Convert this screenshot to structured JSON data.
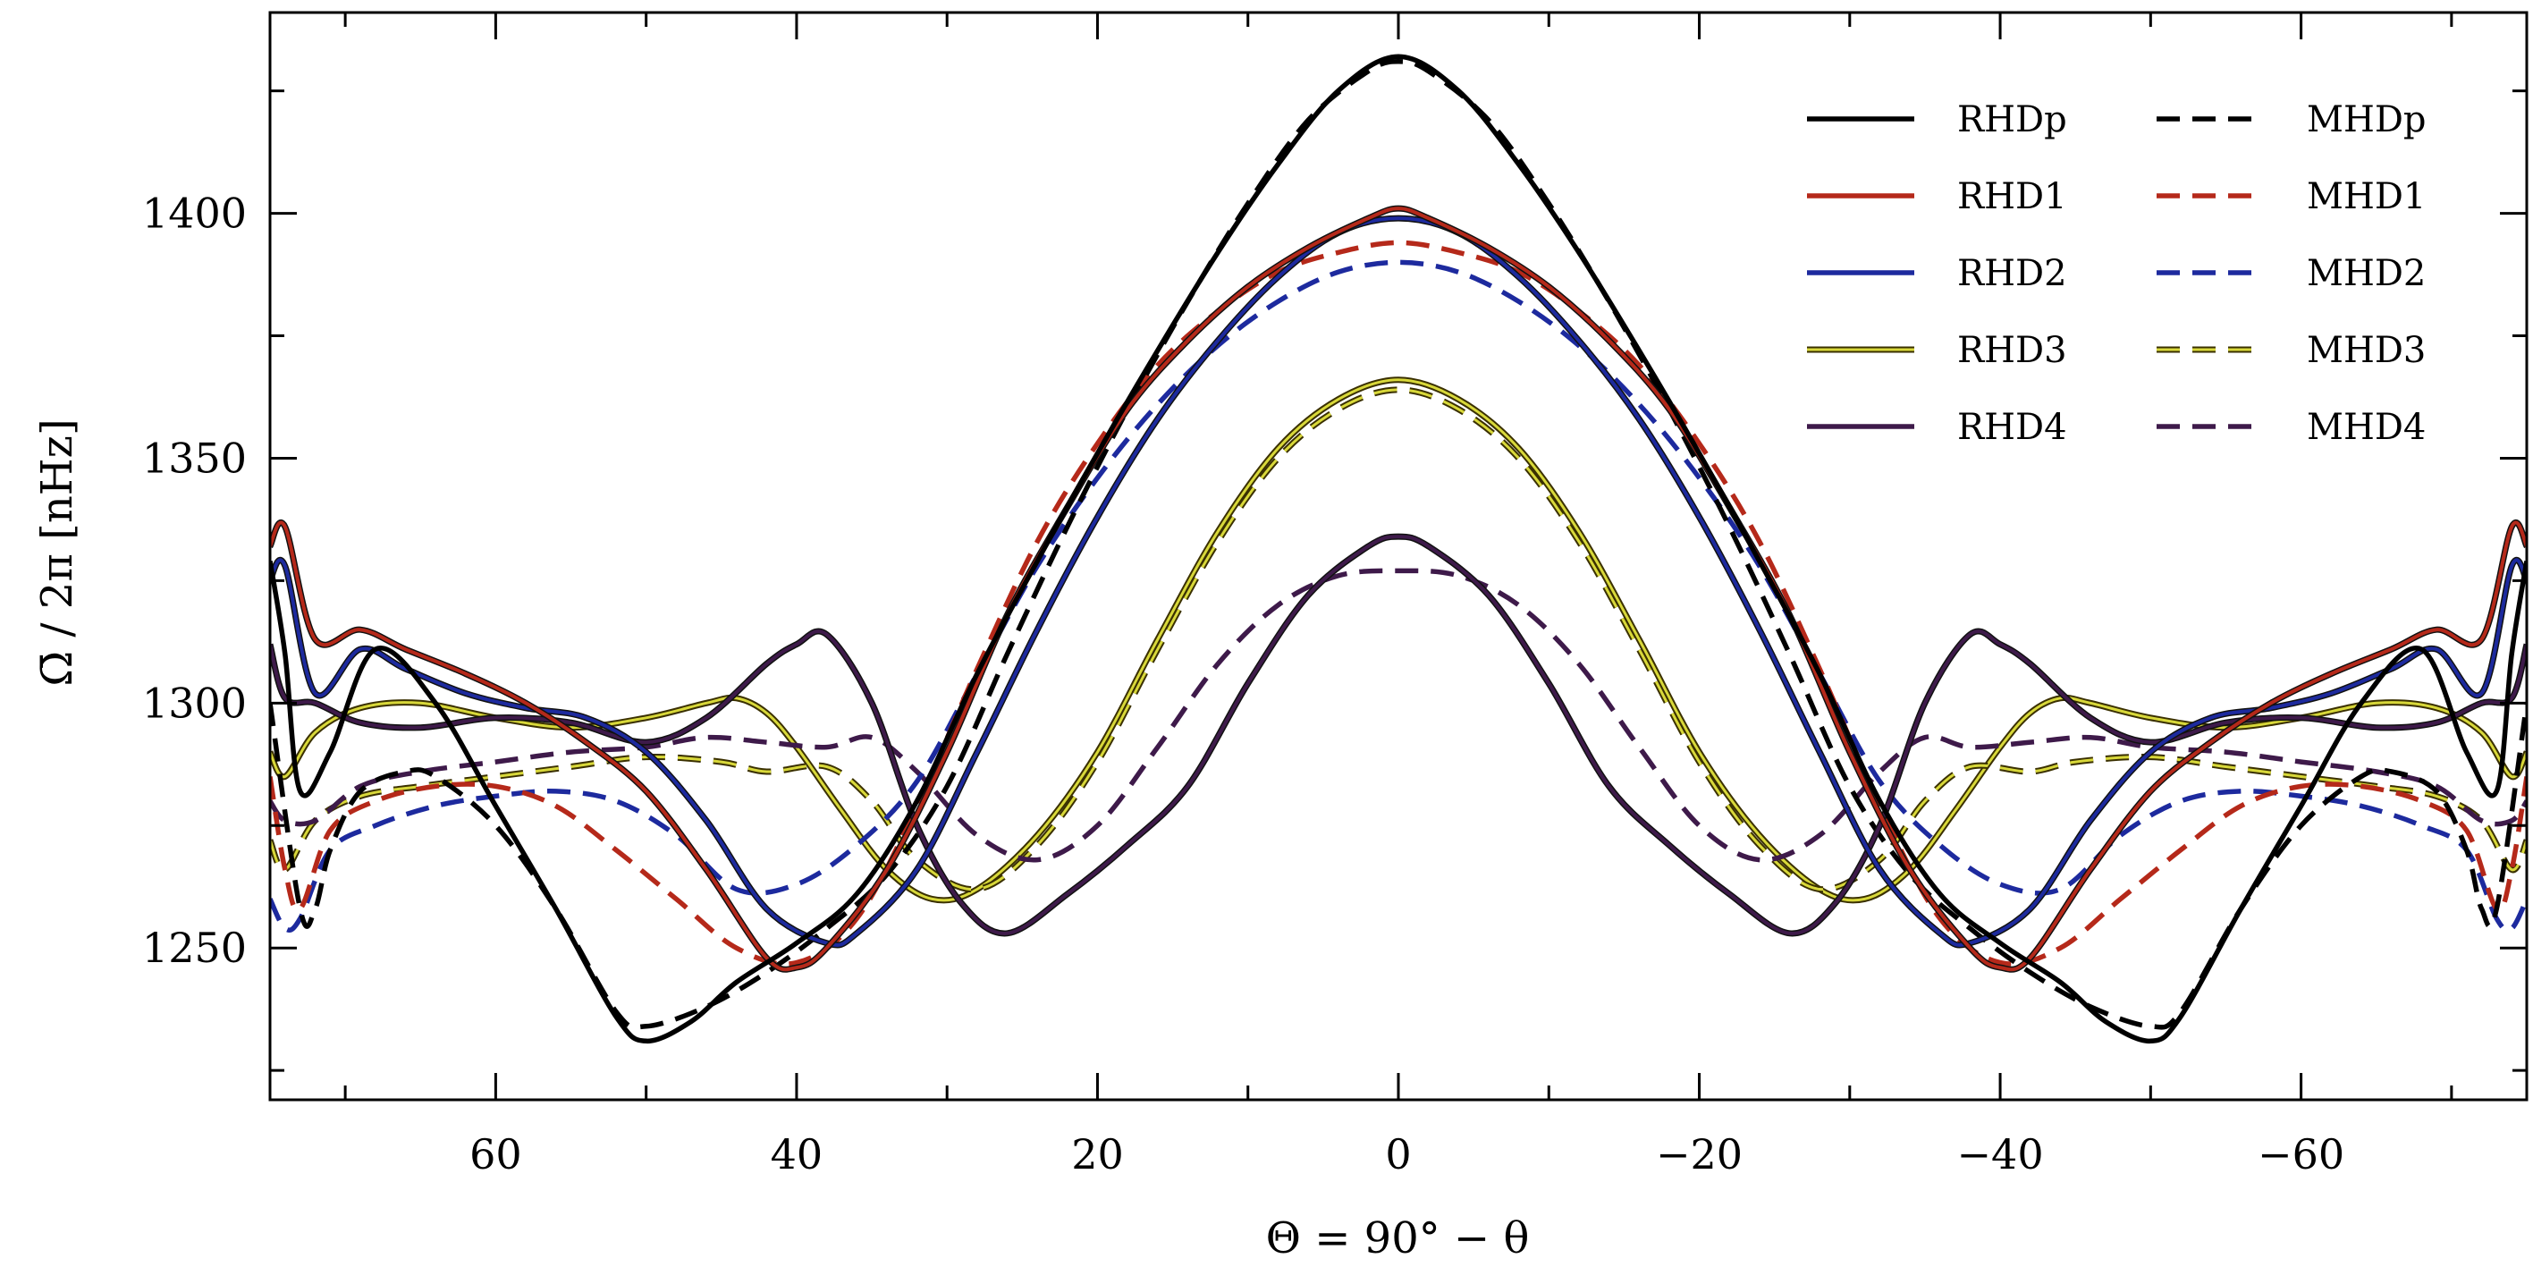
{
  "chart_data": {
    "type": "line",
    "title": "",
    "xlabel": "Θ = 90° − θ",
    "ylabel": "Ω̄ / 2π [nHz]",
    "xlim": [
      75,
      -75
    ],
    "ylim": [
      1219,
      1441
    ],
    "x_ticks": [
      60,
      40,
      20,
      0,
      -20,
      -40,
      -60
    ],
    "x_tick_labels": [
      "60",
      "40",
      "20",
      "0",
      "−20",
      "−40",
      "−60"
    ],
    "y_ticks": [
      1250,
      1300,
      1350,
      1400
    ],
    "y_tick_labels": [
      "1250",
      "1300",
      "1350",
      "1400"
    ],
    "legend_position": "top-right",
    "series": [
      {
        "name": "RHDp",
        "color": "#000000",
        "style": "solid",
        "x": [
          75,
          74,
          73,
          71,
          68,
          64,
          60,
          56,
          52,
          50,
          47,
          44,
          40,
          36,
          32,
          28,
          24,
          20,
          16,
          12,
          8,
          4,
          0
        ],
        "y": [
          1329,
          1310,
          1282,
          1290,
          1311,
          1300,
          1279,
          1258,
          1236,
          1231,
          1235,
          1243,
          1251,
          1261,
          1280,
          1306,
          1329,
          1351,
          1372,
          1392,
          1410,
          1425,
          1432
        ]
      },
      {
        "name": "MHDp",
        "color": "#000000",
        "style": "dashed",
        "x": [
          75,
          73,
          72,
          71,
          69,
          66,
          64,
          60,
          56,
          52,
          50,
          46,
          42,
          38,
          34,
          30,
          26,
          22,
          18,
          14,
          10,
          6,
          2,
          0
        ],
        "y": [
          1300,
          1258,
          1258,
          1270,
          1282,
          1286,
          1285,
          1275,
          1258,
          1237,
          1234,
          1238,
          1245,
          1254,
          1265,
          1283,
          1310,
          1336,
          1360,
          1382,
          1402,
          1419,
          1429,
          1431
        ]
      },
      {
        "name": "RHD1",
        "color": "#b5291a",
        "style": "solid",
        "x": [
          75,
          74,
          72,
          69,
          66,
          62,
          58,
          54,
          50,
          46,
          42,
          40,
          38,
          34,
          30,
          26,
          22,
          18,
          14,
          10,
          6,
          2,
          0
        ],
        "y": [
          1332,
          1336,
          1313,
          1315,
          1311,
          1306,
          1300,
          1292,
          1282,
          1266,
          1248,
          1246,
          1250,
          1266,
          1290,
          1318,
          1340,
          1360,
          1374,
          1385,
          1393,
          1399,
          1401
        ]
      },
      {
        "name": "MHD1",
        "color": "#b5291a",
        "style": "dashed",
        "x": [
          75,
          74,
          73,
          71,
          68,
          64,
          60,
          56,
          52,
          48,
          44,
          40,
          36,
          32,
          28,
          24,
          20,
          16,
          12,
          8,
          4,
          0
        ],
        "y": [
          1285,
          1266,
          1258,
          1274,
          1280,
          1283,
          1283,
          1279,
          1270,
          1260,
          1250,
          1247,
          1256,
          1279,
          1307,
          1333,
          1353,
          1369,
          1380,
          1388,
          1392,
          1394
        ]
      },
      {
        "name": "RHD2",
        "color": "#1d2a9e",
        "style": "solid",
        "x": [
          75,
          74,
          72,
          69,
          66,
          62,
          58,
          54,
          50,
          46,
          42,
          38,
          36,
          32,
          28,
          24,
          20,
          16,
          12,
          8,
          4,
          0
        ],
        "y": [
          1325,
          1328,
          1302,
          1311,
          1307,
          1302,
          1299,
          1297,
          1290,
          1276,
          1258,
          1251,
          1253,
          1266,
          1290,
          1315,
          1338,
          1358,
          1374,
          1387,
          1396,
          1399
        ]
      },
      {
        "name": "MHD2",
        "color": "#1d2a9e",
        "style": "dashed",
        "x": [
          75,
          74,
          73,
          71,
          68,
          64,
          60,
          56,
          52,
          48,
          44,
          40,
          36,
          32,
          28,
          24,
          20,
          16,
          12,
          8,
          4,
          0
        ],
        "y": [
          1260,
          1254,
          1256,
          1270,
          1275,
          1279,
          1281,
          1282,
          1280,
          1273,
          1262,
          1263,
          1271,
          1284,
          1306,
          1328,
          1346,
          1361,
          1373,
          1382,
          1388,
          1390
        ]
      },
      {
        "name": "RHD3",
        "color": "#d8d83a",
        "style": "double",
        "x": [
          75,
          74,
          72,
          69,
          65,
          60,
          55,
          50,
          46,
          44,
          42,
          40,
          37,
          34,
          31,
          28,
          24,
          20,
          16,
          12,
          8,
          4,
          0
        ],
        "y": [
          1290,
          1285,
          1294,
          1299,
          1300,
          1297,
          1295,
          1297,
          1300,
          1301,
          1298,
          1291,
          1278,
          1266,
          1260,
          1262,
          1273,
          1290,
          1313,
          1335,
          1352,
          1362,
          1366
        ]
      },
      {
        "name": "MHD3",
        "color": "#d8d83a",
        "style": "double-dashed",
        "x": [
          75,
          74,
          72,
          69,
          65,
          60,
          55,
          50,
          45,
          42,
          38,
          35,
          32,
          28,
          24,
          20,
          16,
          12,
          8,
          4,
          0
        ],
        "y": [
          1272,
          1266,
          1276,
          1281,
          1283,
          1285,
          1287,
          1289,
          1288,
          1286,
          1287,
          1280,
          1268,
          1262,
          1271,
          1288,
          1311,
          1333,
          1350,
          1360,
          1364
        ]
      },
      {
        "name": "RHD4",
        "color": "#3e1a4a",
        "style": "solid",
        "x": [
          75,
          74,
          72,
          69,
          65,
          60,
          55,
          50,
          46,
          42,
          40,
          38,
          35,
          32,
          29,
          26,
          22,
          18,
          14,
          10,
          6,
          2,
          0
        ],
        "y": [
          1312,
          1301,
          1300,
          1296,
          1295,
          1297,
          1296,
          1292,
          1297,
          1308,
          1312,
          1314,
          1300,
          1275,
          1259,
          1253,
          1261,
          1271,
          1283,
          1304,
          1322,
          1332,
          1334
        ]
      },
      {
        "name": "MHD4",
        "color": "#3e1a4a",
        "style": "dashed",
        "x": [
          75,
          74,
          72,
          69,
          65,
          60,
          55,
          50,
          46,
          42,
          38,
          35,
          32,
          28,
          24,
          20,
          16,
          12,
          8,
          4,
          0
        ],
        "y": [
          1280,
          1276,
          1276,
          1283,
          1286,
          1288,
          1290,
          1291,
          1293,
          1292,
          1291,
          1293,
          1286,
          1273,
          1268,
          1275,
          1291,
          1308,
          1320,
          1326,
          1327
        ]
      }
    ]
  }
}
